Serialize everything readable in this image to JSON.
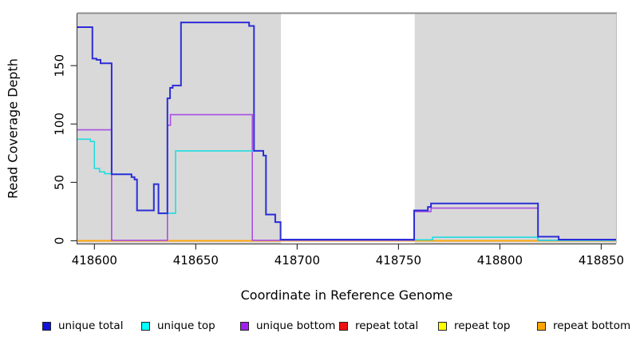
{
  "chart_data": {
    "type": "line",
    "subtype": "step-coverage",
    "title": "",
    "xlabel": "Coordinate in Reference Genome",
    "ylabel": "Read Coverage Depth",
    "xlim": [
      418591.6,
      418857.3
    ],
    "ylim": [
      -2.4,
      194.6
    ],
    "xticks": [
      418600,
      418650,
      418700,
      418750,
      418800,
      418850
    ],
    "xtick_labels": [
      "418600",
      "418650",
      "418700",
      "418750",
      "418800",
      "418850"
    ],
    "yticks": [
      0,
      50,
      100,
      150
    ],
    "ytick_labels": [
      "0",
      "50",
      "100",
      "150"
    ],
    "grid": false,
    "legend_position": "bottom",
    "background_shading": {
      "color": "#d9d9d9",
      "regions": [
        [
          418591.6,
          418692.0
        ],
        [
          418758.0,
          418857.3
        ]
      ]
    },
    "border": {
      "top_color": "#8f8f8f",
      "axis_color": "#333333"
    },
    "series": [
      {
        "name": "repeat top",
        "color": "#ffff00",
        "width": 1.2,
        "steps": [
          [
            418591.6,
            0
          ]
        ]
      },
      {
        "name": "repeat total",
        "color": "#ee1111",
        "width": 1.2,
        "steps": [
          [
            418591.6,
            0
          ]
        ]
      },
      {
        "name": "repeat bottom",
        "color": "#ffa500",
        "width": 1.8,
        "steps": [
          [
            418591.6,
            0
          ]
        ]
      },
      {
        "name": "unique bottom",
        "color": "#a94fe3",
        "width": 1.6,
        "steps": [
          [
            418591.6,
            95
          ],
          [
            418608.5,
            0.4
          ],
          [
            418636.0,
            99
          ],
          [
            418637.5,
            108
          ],
          [
            418677.9,
            0.4
          ],
          [
            418757.7,
            25
          ],
          [
            418766.0,
            28
          ],
          [
            418818.8,
            0.4
          ]
        ]
      },
      {
        "name": "unique top",
        "color": "#21dce0",
        "width": 1.6,
        "steps": [
          [
            418591.6,
            87
          ],
          [
            418598.0,
            85
          ],
          [
            418600.0,
            62
          ],
          [
            418602.5,
            59
          ],
          [
            418605.0,
            57.5
          ],
          [
            418608.5,
            57
          ],
          [
            418618.3,
            54.5
          ],
          [
            418619.8,
            52.5
          ],
          [
            418621.0,
            26
          ],
          [
            418629.3,
            48.5
          ],
          [
            418631.6,
            23.5
          ],
          [
            418640.0,
            77
          ],
          [
            418683.3,
            73
          ],
          [
            418684.6,
            22.5
          ],
          [
            418689.2,
            16
          ],
          [
            418691.8,
            0.8
          ],
          [
            418766.8,
            3
          ],
          [
            418818.8,
            0.4
          ]
        ]
      },
      {
        "name": "unique total",
        "color": "#2d2dd8",
        "width": 2.0,
        "steps": [
          [
            418591.6,
            183
          ],
          [
            418599.0,
            156
          ],
          [
            418601.0,
            155
          ],
          [
            418603.0,
            152
          ],
          [
            418608.5,
            57
          ],
          [
            418618.3,
            54.5
          ],
          [
            418619.8,
            52.5
          ],
          [
            418621.0,
            26
          ],
          [
            418629.3,
            48.5
          ],
          [
            418631.6,
            23.5
          ],
          [
            418636.0,
            122
          ],
          [
            418637.3,
            131
          ],
          [
            418638.6,
            133
          ],
          [
            418642.7,
            187
          ],
          [
            418676.3,
            184
          ],
          [
            418678.7,
            77
          ],
          [
            418683.3,
            73
          ],
          [
            418684.6,
            22.5
          ],
          [
            418689.2,
            16
          ],
          [
            418691.8,
            1
          ],
          [
            418757.7,
            26
          ],
          [
            418764.5,
            29
          ],
          [
            418766.0,
            32
          ],
          [
            418818.8,
            3.5
          ],
          [
            418829.0,
            1
          ]
        ]
      }
    ],
    "legend": {
      "entries": [
        {
          "label": "unique total",
          "color": "#1414dc"
        },
        {
          "label": "unique top",
          "color": "#00ffff"
        },
        {
          "label": "unique bottom",
          "color": "#a020f0"
        },
        {
          "label": "repeat total",
          "color": "#ee1111"
        },
        {
          "label": "repeat top",
          "color": "#ffff00"
        },
        {
          "label": "repeat bottom",
          "color": "#ffa500"
        }
      ]
    }
  }
}
